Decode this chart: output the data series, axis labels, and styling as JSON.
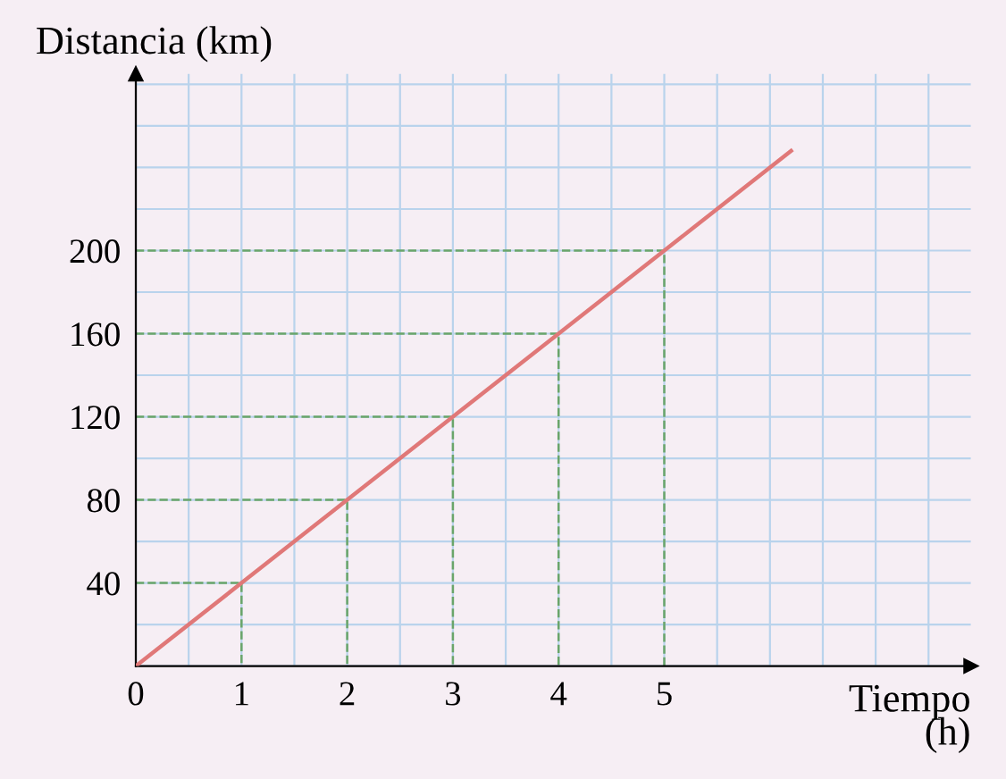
{
  "chart_data": {
    "type": "line",
    "xlabel": "Tiempo\n(h)",
    "ylabel": "Distancia (km)",
    "x": [
      0,
      1,
      2,
      3,
      4,
      5,
      6.2
    ],
    "series": [
      {
        "color": "#e07878",
        "values": [
          0,
          40,
          80,
          120,
          160,
          200,
          248
        ]
      },
      {
        "color": "#6aa56a",
        "line_style": "dashed",
        "x": [
          0,
          1,
          1
        ],
        "values": [
          40,
          40,
          0
        ]
      },
      {
        "color": "#6aa56a",
        "line_style": "dashed",
        "x": [
          0,
          2,
          2
        ],
        "values": [
          80,
          80,
          0
        ]
      },
      {
        "color": "#6aa56a",
        "line_style": "dashed",
        "x": [
          0,
          3,
          3
        ],
        "values": [
          120,
          120,
          0
        ]
      },
      {
        "color": "#6aa56a",
        "line_style": "dashed",
        "x": [
          0,
          4,
          4
        ],
        "values": [
          160,
          160,
          0
        ]
      },
      {
        "color": "#6aa56a",
        "line_style": "dashed",
        "x": [
          0,
          5,
          5
        ],
        "values": [
          200,
          200,
          0
        ]
      }
    ],
    "xlim": [
      0,
      7.9
    ],
    "ylim": [
      0,
      285
    ],
    "xticks": [
      0,
      1,
      2,
      3,
      4,
      5
    ],
    "yticks": [
      40,
      80,
      120,
      160,
      200
    ],
    "grid": true,
    "marker": "none",
    "line_style": "solid"
  }
}
